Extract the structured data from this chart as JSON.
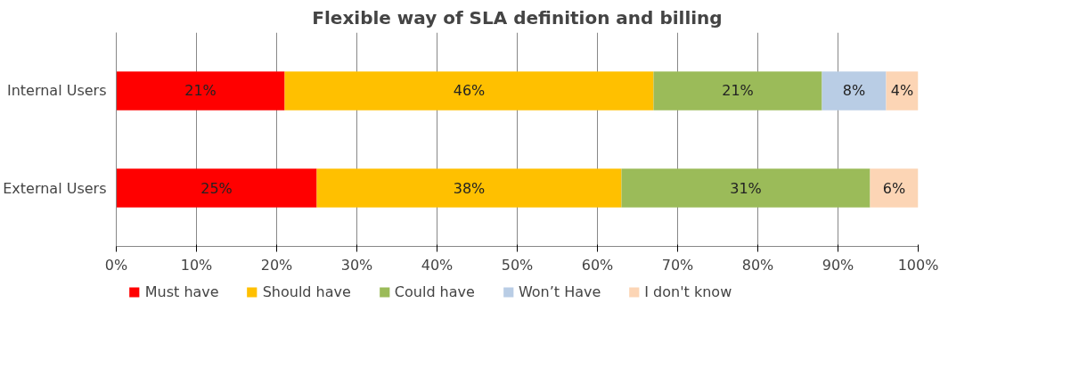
{
  "chart_data": {
    "type": "bar",
    "orientation": "horizontal",
    "stacked": true,
    "title": "Flexible way of SLA definition and billing",
    "categories": [
      "Internal Users",
      "External Users"
    ],
    "series": [
      {
        "name": "Must have",
        "color": "#ff0000",
        "values": [
          21,
          25
        ],
        "value_labels": [
          "21%",
          "25%"
        ]
      },
      {
        "name": "Should have",
        "color": "#ffc000",
        "values": [
          46,
          38
        ],
        "value_labels": [
          "46%",
          "38%"
        ]
      },
      {
        "name": "Could have",
        "color": "#9bbb59",
        "values": [
          21,
          31
        ],
        "value_labels": [
          "21%",
          "31%"
        ]
      },
      {
        "name": "Won’t Have",
        "color": "#b9cde5",
        "values": [
          8,
          null
        ],
        "value_labels": [
          "8%",
          null
        ]
      },
      {
        "name": "I don't know",
        "color": "#fcd5b5",
        "values": [
          4,
          6
        ],
        "value_labels": [
          "4%",
          "6%"
        ]
      }
    ],
    "xlim": [
      0,
      100
    ],
    "xticks": [
      {
        "value": 0,
        "label": "0%"
      },
      {
        "value": 10,
        "label": "10%"
      },
      {
        "value": 20,
        "label": "20%"
      },
      {
        "value": 30,
        "label": "30%"
      },
      {
        "value": 40,
        "label": "40%"
      },
      {
        "value": 50,
        "label": "50%"
      },
      {
        "value": 60,
        "label": "60%"
      },
      {
        "value": 70,
        "label": "70%"
      },
      {
        "value": 80,
        "label": "80%"
      },
      {
        "value": 90,
        "label": "90%"
      },
      {
        "value": 100,
        "label": "100%"
      }
    ],
    "grid": "x",
    "legend": "bottom"
  }
}
